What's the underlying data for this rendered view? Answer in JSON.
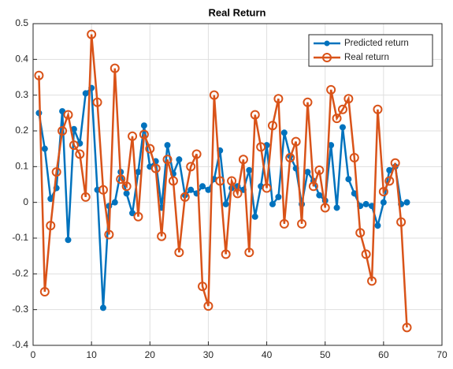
{
  "chart_data": {
    "type": "line",
    "title": "Real Return",
    "x": [
      1,
      2,
      3,
      4,
      5,
      6,
      7,
      8,
      9,
      10,
      11,
      12,
      13,
      14,
      15,
      16,
      17,
      18,
      19,
      20,
      21,
      22,
      23,
      24,
      25,
      26,
      27,
      28,
      29,
      30,
      31,
      32,
      33,
      34,
      35,
      36,
      37,
      38,
      39,
      40,
      41,
      42,
      43,
      44,
      45,
      46,
      47,
      48,
      49,
      50,
      51,
      52,
      53,
      54,
      55,
      56,
      57,
      58,
      59,
      60,
      61,
      62,
      63,
      64
    ],
    "series": [
      {
        "name": "Predicted return",
        "color": "#0072BD",
        "values": [
          0.25,
          0.15,
          0.01,
          0.04,
          0.255,
          -0.105,
          0.205,
          0.165,
          0.305,
          0.32,
          0.035,
          -0.295,
          -0.01,
          0.0,
          0.085,
          0.025,
          -0.03,
          0.085,
          0.215,
          0.1,
          0.115,
          -0.015,
          0.16,
          0.08,
          0.12,
          0.02,
          0.035,
          0.025,
          0.045,
          0.035,
          0.065,
          0.145,
          -0.005,
          0.04,
          0.045,
          0.035,
          0.09,
          -0.04,
          0.045,
          0.16,
          -0.005,
          0.015,
          0.195,
          0.13,
          0.095,
          -0.005,
          0.085,
          0.06,
          0.02,
          0.005,
          0.16,
          -0.015,
          0.21,
          0.065,
          0.025,
          -0.01,
          -0.005,
          -0.01,
          -0.065,
          0.0,
          0.09,
          0.1,
          -0.005,
          0.0
        ]
      },
      {
        "name": "Real return",
        "color": "#D95319",
        "values": [
          0.355,
          -0.25,
          -0.065,
          0.085,
          0.2,
          0.245,
          0.16,
          0.135,
          0.015,
          0.47,
          0.28,
          0.035,
          -0.09,
          0.375,
          0.065,
          0.045,
          0.185,
          -0.04,
          0.19,
          0.15,
          0.095,
          -0.095,
          0.12,
          0.06,
          -0.14,
          0.015,
          0.1,
          0.135,
          -0.235,
          -0.29,
          0.3,
          0.06,
          -0.145,
          0.06,
          0.025,
          0.12,
          -0.14,
          0.245,
          0.155,
          0.04,
          0.215,
          0.29,
          -0.06,
          0.125,
          0.17,
          -0.06,
          0.28,
          0.045,
          0.09,
          -0.015,
          0.315,
          0.235,
          0.26,
          0.29,
          0.125,
          -0.085,
          -0.145,
          -0.22,
          0.26,
          0.03,
          0.06,
          0.11,
          -0.055,
          -0.35
        ]
      }
    ],
    "xlim": [
      0,
      70
    ],
    "xticks": [
      0,
      10,
      20,
      30,
      40,
      50,
      60,
      70
    ],
    "ylim": [
      -0.4,
      0.5
    ],
    "yticks": [
      -0.4,
      -0.3,
      -0.2,
      -0.1,
      0,
      0.1,
      0.2,
      0.3,
      0.4,
      0.5
    ],
    "grid": true,
    "legend": "northeast"
  }
}
